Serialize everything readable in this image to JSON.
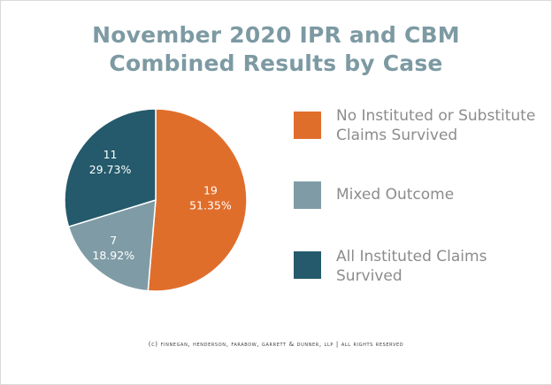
{
  "chart_data": {
    "type": "pie",
    "title_lines": [
      "November 2020 IPR and CBM",
      "Combined Results by Case"
    ],
    "slices": [
      {
        "label": "No Instituted or Substitute Claims Survived",
        "label_lines": [
          "No Instituted or Substitute",
          "Claims Survived"
        ],
        "value": 19,
        "percent": "51.35%",
        "color": "#e06e2b"
      },
      {
        "label": "Mixed Outcome",
        "label_lines": [
          "Mixed Outcome"
        ],
        "value": 7,
        "percent": "18.92%",
        "color": "#7f9ca6"
      },
      {
        "label": "All Instituted Claims Survived",
        "label_lines": [
          "All Instituted Claims",
          "Survived"
        ],
        "value": 11,
        "percent": "29.73%",
        "color": "#245a6b"
      }
    ],
    "legend_position": "right"
  },
  "footer": "(c) finnegan, henderson, farabow, garrett & dunner, llp | all rights reserved"
}
